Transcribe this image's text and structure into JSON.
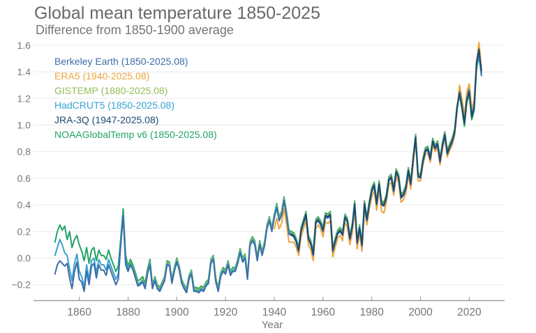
{
  "header": {
    "title": "Global mean temperature 1850-2025",
    "subtitle": "Difference from 1850-1900 average"
  },
  "chart_data": {
    "type": "line",
    "title": "Global mean temperature 1850-2025",
    "subtitle": "Difference from 1850-1900 average",
    "xlabel": "Year",
    "ylabel": "",
    "grid": "horizontal only, light gray",
    "legend_position": "top-left, colored text, no swatches",
    "x_range": [
      1841,
      2035
    ],
    "ylim": [
      -0.32,
      1.72
    ],
    "x_ticks": [
      "1860",
      "1880",
      "1900",
      "1920",
      "1940",
      "1960",
      "1980",
      "2000",
      "2020"
    ],
    "y_ticks": [
      {
        "v": 1.6,
        "label": "1.6"
      },
      {
        "v": 1.4,
        "label": "1.4"
      },
      {
        "v": 1.2,
        "label": "1.2"
      },
      {
        "v": 1.0,
        "label": "1.0"
      },
      {
        "v": 0.8,
        "label": "0.8"
      },
      {
        "v": 0.6,
        "label": "0.6"
      },
      {
        "v": 0.4,
        "label": "0.4"
      },
      {
        "v": 0.2,
        "label": "0.2"
      },
      {
        "v": 0.0,
        "label": "0.0"
      },
      {
        "v": -0.2,
        "label": "−0.2"
      }
    ],
    "series": [
      {
        "name": "Berkeley Earth",
        "legend_label": "Berkeley Earth (1850-2025.08)",
        "color": "#3c6da8",
        "start_year": 1850,
        "values": [
          -0.12,
          -0.05,
          -0.02,
          -0.04,
          -0.06,
          -0.04,
          -0.15,
          -0.23,
          -0.1,
          -0.03,
          -0.16,
          -0.18,
          -0.25,
          -0.1,
          -0.2,
          -0.06,
          -0.04,
          -0.15,
          -0.05,
          -0.09,
          -0.09,
          -0.13,
          -0.05,
          -0.1,
          -0.15,
          -0.2,
          -0.16,
          0.1,
          0.32,
          -0.05,
          -0.1,
          -0.05,
          -0.09,
          -0.15,
          -0.21,
          -0.2,
          -0.18,
          -0.23,
          -0.12,
          -0.05,
          -0.23,
          -0.17,
          -0.23,
          -0.25,
          -0.21,
          -0.17,
          -0.05,
          -0.06,
          -0.19,
          -0.1,
          -0.03,
          -0.09,
          -0.19,
          -0.23,
          -0.26,
          -0.16,
          -0.12,
          -0.25,
          -0.25,
          -0.26,
          -0.24,
          -0.25,
          -0.21,
          -0.19,
          -0.04,
          -0.01,
          -0.18,
          -0.25,
          -0.14,
          -0.1,
          -0.12,
          -0.05,
          -0.13,
          -0.1,
          -0.1,
          -0.04,
          0.04,
          -0.03,
          0.0,
          -0.16,
          0.09,
          0.13,
          0.1,
          -0.02,
          0.1,
          0.02,
          0.09,
          0.22,
          0.28,
          0.2,
          0.3,
          0.38,
          0.28,
          0.32,
          0.43,
          0.32,
          0.18,
          0.17,
          0.16,
          0.12,
          0.05,
          0.2,
          0.26,
          0.32,
          0.14,
          0.1,
          0.02,
          0.26,
          0.28,
          0.25,
          0.2,
          0.31,
          0.3,
          0.32,
          0.05,
          0.12,
          0.18,
          0.2,
          0.17,
          0.3,
          0.27,
          0.14,
          0.23,
          0.4,
          0.11,
          0.22,
          0.09,
          0.4,
          0.28,
          0.4,
          0.5,
          0.54,
          0.4,
          0.55,
          0.4,
          0.39,
          0.45,
          0.58,
          0.6,
          0.5,
          0.64,
          0.6,
          0.45,
          0.47,
          0.52,
          0.65,
          0.55,
          0.74,
          0.9,
          0.61,
          0.6,
          0.72,
          0.8,
          0.81,
          0.74,
          0.87,
          0.82,
          0.85,
          0.72,
          0.84,
          0.92,
          0.78,
          0.83,
          0.87,
          0.94,
          1.12,
          1.25,
          1.15,
          1.02,
          1.2,
          1.26,
          1.07,
          1.14,
          1.46,
          1.55,
          1.38
        ]
      },
      {
        "name": "ERA5",
        "legend_label": "ERA5 (1940-2025.08)",
        "color": "#eea43b",
        "start_year": 1940,
        "values": [
          0.22,
          0.3,
          0.22,
          0.26,
          0.37,
          0.26,
          0.12,
          0.12,
          0.12,
          0.08,
          0.02,
          0.16,
          0.22,
          0.28,
          0.1,
          0.06,
          -0.02,
          0.22,
          0.25,
          0.22,
          0.16,
          0.27,
          0.26,
          0.28,
          0.01,
          0.08,
          0.15,
          0.17,
          0.13,
          0.27,
          0.23,
          0.1,
          0.19,
          0.37,
          0.07,
          0.18,
          0.05,
          0.37,
          0.25,
          0.37,
          0.46,
          0.51,
          0.36,
          0.52,
          0.35,
          0.34,
          0.42,
          0.55,
          0.57,
          0.47,
          0.61,
          0.57,
          0.42,
          0.44,
          0.49,
          0.62,
          0.52,
          0.71,
          0.88,
          0.58,
          0.58,
          0.7,
          0.78,
          0.79,
          0.72,
          0.85,
          0.8,
          0.83,
          0.7,
          0.82,
          0.9,
          0.76,
          0.81,
          0.85,
          0.92,
          1.1,
          1.3,
          1.2,
          1.07,
          1.25,
          1.31,
          1.12,
          1.19,
          1.48,
          1.62,
          1.42
        ]
      },
      {
        "name": "GISTEMP",
        "legend_label": "GISTEMP (1880-2025.08)",
        "color": "#93bd57",
        "start_year": 1880,
        "values": [
          -0.08,
          -0.03,
          -0.07,
          -0.13,
          -0.19,
          -0.18,
          -0.16,
          -0.21,
          -0.1,
          -0.03,
          -0.21,
          -0.15,
          -0.21,
          -0.23,
          -0.19,
          -0.15,
          -0.03,
          -0.04,
          -0.17,
          -0.08,
          -0.01,
          -0.07,
          -0.17,
          -0.21,
          -0.24,
          -0.14,
          -0.1,
          -0.23,
          -0.23,
          -0.24,
          -0.22,
          -0.23,
          -0.19,
          -0.17,
          -0.02,
          0.01,
          -0.16,
          -0.23,
          -0.12,
          -0.08,
          -0.1,
          -0.03,
          -0.11,
          -0.08,
          -0.08,
          -0.02,
          0.06,
          -0.01,
          0.02,
          -0.14,
          0.11,
          0.15,
          0.12,
          0.0,
          0.12,
          0.04,
          0.11,
          0.24,
          0.3,
          0.22,
          0.32,
          0.4,
          0.3,
          0.34,
          0.45,
          0.34,
          0.2,
          0.19,
          0.18,
          0.14,
          0.07,
          0.22,
          0.28,
          0.34,
          0.16,
          0.12,
          0.04,
          0.28,
          0.3,
          0.27,
          0.22,
          0.33,
          0.32,
          0.34,
          0.07,
          0.14,
          0.2,
          0.22,
          0.19,
          0.32,
          0.29,
          0.16,
          0.25,
          0.42,
          0.13,
          0.24,
          0.11,
          0.42,
          0.3,
          0.42,
          0.52,
          0.56,
          0.42,
          0.57,
          0.42,
          0.41,
          0.47,
          0.6,
          0.62,
          0.52,
          0.66,
          0.62,
          0.47,
          0.49,
          0.54,
          0.67,
          0.57,
          0.76,
          0.92,
          0.63,
          0.62,
          0.74,
          0.82,
          0.83,
          0.76,
          0.89,
          0.84,
          0.87,
          0.74,
          0.86,
          0.94,
          0.8,
          0.85,
          0.89,
          0.96,
          1.14,
          1.27,
          1.17,
          1.04,
          1.22,
          1.28,
          1.09,
          1.16,
          1.45,
          1.54,
          1.4
        ]
      },
      {
        "name": "HadCRUT5",
        "legend_label": "HadCRUT5 (1850-2025.08)",
        "color": "#36a2cf",
        "start_year": 1850,
        "values": [
          0.02,
          0.08,
          0.14,
          0.1,
          0.04,
          0.02,
          -0.08,
          -0.17,
          -0.04,
          0.03,
          -0.1,
          -0.14,
          -0.22,
          -0.05,
          -0.16,
          -0.02,
          0.0,
          -0.11,
          -0.01,
          -0.05,
          -0.05,
          -0.09,
          -0.01,
          -0.06,
          -0.11,
          -0.16,
          -0.12,
          0.13,
          0.33,
          -0.02,
          -0.09,
          -0.04,
          -0.08,
          -0.14,
          -0.2,
          -0.19,
          -0.17,
          -0.22,
          -0.11,
          -0.04,
          -0.22,
          -0.16,
          -0.22,
          -0.24,
          -0.2,
          -0.16,
          -0.04,
          -0.05,
          -0.18,
          -0.09,
          -0.02,
          -0.08,
          -0.18,
          -0.22,
          -0.25,
          -0.15,
          -0.11,
          -0.24,
          -0.24,
          -0.25,
          -0.23,
          -0.24,
          -0.2,
          -0.18,
          -0.03,
          0.0,
          -0.17,
          -0.24,
          -0.13,
          -0.09,
          -0.11,
          -0.04,
          -0.12,
          -0.09,
          -0.09,
          -0.03,
          0.05,
          -0.02,
          0.01,
          -0.15,
          0.1,
          0.14,
          0.11,
          -0.01,
          0.11,
          0.03,
          0.1,
          0.23,
          0.29,
          0.21,
          0.31,
          0.39,
          0.29,
          0.33,
          0.44,
          0.33,
          0.19,
          0.18,
          0.17,
          0.13,
          0.06,
          0.21,
          0.27,
          0.33,
          0.15,
          0.11,
          0.03,
          0.27,
          0.29,
          0.26,
          0.21,
          0.32,
          0.31,
          0.33,
          0.06,
          0.13,
          0.19,
          0.21,
          0.18,
          0.31,
          0.28,
          0.15,
          0.24,
          0.41,
          0.12,
          0.23,
          0.1,
          0.41,
          0.29,
          0.41,
          0.51,
          0.55,
          0.41,
          0.56,
          0.41,
          0.4,
          0.46,
          0.59,
          0.61,
          0.51,
          0.65,
          0.61,
          0.46,
          0.48,
          0.53,
          0.66,
          0.56,
          0.75,
          0.91,
          0.62,
          0.61,
          0.73,
          0.81,
          0.82,
          0.75,
          0.88,
          0.83,
          0.86,
          0.73,
          0.85,
          0.93,
          0.79,
          0.84,
          0.88,
          0.95,
          1.13,
          1.26,
          1.16,
          1.03,
          1.21,
          1.27,
          1.08,
          1.15,
          1.44,
          1.53,
          1.39
        ]
      },
      {
        "name": "JRA-3Q",
        "legend_label": "JRA-3Q (1947-2025.08)",
        "color": "#1b4a72",
        "start_year": 1947,
        "values": [
          0.18,
          0.17,
          0.13,
          0.06,
          0.21,
          0.27,
          0.33,
          0.15,
          0.11,
          0.03,
          0.27,
          0.29,
          0.26,
          0.21,
          0.32,
          0.31,
          0.33,
          0.06,
          0.13,
          0.19,
          0.21,
          0.18,
          0.31,
          0.28,
          0.15,
          0.24,
          0.41,
          0.12,
          0.23,
          0.1,
          0.41,
          0.29,
          0.41,
          0.51,
          0.55,
          0.41,
          0.56,
          0.41,
          0.4,
          0.46,
          0.59,
          0.61,
          0.51,
          0.65,
          0.61,
          0.46,
          0.48,
          0.53,
          0.66,
          0.56,
          0.75,
          0.91,
          0.62,
          0.61,
          0.73,
          0.81,
          0.82,
          0.75,
          0.88,
          0.83,
          0.86,
          0.73,
          0.85,
          0.93,
          0.79,
          0.84,
          0.88,
          0.95,
          1.13,
          1.24,
          1.14,
          1.01,
          1.19,
          1.25,
          1.06,
          1.13,
          1.47,
          1.57,
          1.41
        ]
      },
      {
        "name": "NOAAGlobalTemp v6",
        "legend_label": "NOAAGlobalTemp v6 (1850-2025.08)",
        "color": "#22a366",
        "start_year": 1850,
        "values": [
          0.12,
          0.2,
          0.25,
          0.21,
          0.24,
          0.14,
          0.2,
          0.08,
          0.14,
          0.17,
          0.1,
          0.05,
          -0.02,
          0.08,
          -0.04,
          0.06,
          0.08,
          -0.02,
          0.06,
          0.02,
          0.02,
          -0.01,
          0.06,
          0.0,
          -0.05,
          -0.1,
          -0.06,
          0.15,
          0.37,
          0.02,
          -0.06,
          -0.01,
          -0.05,
          -0.11,
          -0.17,
          -0.16,
          -0.14,
          -0.19,
          -0.08,
          -0.01,
          -0.2,
          -0.14,
          -0.2,
          -0.22,
          -0.18,
          -0.14,
          -0.02,
          -0.03,
          -0.16,
          -0.07,
          0.0,
          -0.06,
          -0.16,
          -0.2,
          -0.23,
          -0.13,
          -0.09,
          -0.22,
          -0.22,
          -0.23,
          -0.21,
          -0.22,
          -0.18,
          -0.16,
          -0.01,
          0.02,
          -0.15,
          -0.22,
          -0.11,
          -0.07,
          -0.09,
          -0.02,
          -0.1,
          -0.07,
          -0.07,
          -0.01,
          0.07,
          0.0,
          0.03,
          -0.13,
          0.12,
          0.16,
          0.13,
          0.01,
          0.13,
          0.05,
          0.12,
          0.25,
          0.31,
          0.23,
          0.33,
          0.41,
          0.31,
          0.35,
          0.46,
          0.35,
          0.21,
          0.2,
          0.19,
          0.15,
          0.08,
          0.23,
          0.29,
          0.35,
          0.17,
          0.13,
          0.05,
          0.29,
          0.31,
          0.28,
          0.23,
          0.34,
          0.33,
          0.35,
          0.08,
          0.15,
          0.21,
          0.23,
          0.2,
          0.33,
          0.3,
          0.17,
          0.26,
          0.43,
          0.14,
          0.25,
          0.12,
          0.43,
          0.31,
          0.43,
          0.53,
          0.57,
          0.43,
          0.58,
          0.43,
          0.42,
          0.48,
          0.61,
          0.63,
          0.53,
          0.67,
          0.63,
          0.48,
          0.5,
          0.55,
          0.68,
          0.58,
          0.77,
          0.93,
          0.64,
          0.63,
          0.75,
          0.83,
          0.84,
          0.77,
          0.9,
          0.85,
          0.88,
          0.75,
          0.87,
          0.95,
          0.81,
          0.86,
          0.9,
          0.97,
          1.15,
          1.22,
          1.12,
          0.99,
          1.17,
          1.23,
          1.04,
          1.11,
          1.42,
          1.52,
          1.37
        ]
      }
    ]
  }
}
